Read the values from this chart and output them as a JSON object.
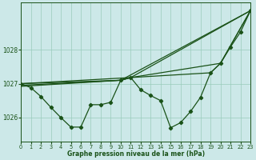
{
  "title": "Graphe pression niveau de la mer (hPa)",
  "bg_color": "#cce8e8",
  "grid_color": "#99ccbb",
  "line_color": "#1a5218",
  "xlim": [
    0,
    23
  ],
  "ylim": [
    1025.3,
    1029.4
  ],
  "yticks": [
    1026,
    1027,
    1028
  ],
  "xticks": [
    0,
    1,
    2,
    3,
    4,
    5,
    6,
    7,
    8,
    9,
    10,
    11,
    12,
    13,
    14,
    15,
    16,
    17,
    18,
    19,
    20,
    21,
    22,
    23
  ],
  "main_y": [
    1027.0,
    1026.88,
    1026.62,
    1026.3,
    1026.0,
    1025.72,
    1025.72,
    1026.38,
    1026.38,
    1026.45,
    1027.1,
    1027.18,
    1026.82,
    1026.65,
    1026.5,
    1025.7,
    1025.85,
    1026.18,
    1026.6,
    1027.32,
    1027.6,
    1028.08,
    1028.52,
    1029.15
  ],
  "line2_x": [
    0,
    10,
    23
  ],
  "line2_y": [
    1027.0,
    1027.1,
    1029.15
  ],
  "line3_x": [
    0,
    11,
    23
  ],
  "line3_y": [
    1027.0,
    1027.18,
    1029.15
  ],
  "line4_x": [
    0,
    10,
    11,
    20,
    23
  ],
  "line4_y": [
    1026.95,
    1027.1,
    1027.18,
    1027.6,
    1029.15
  ],
  "line5_x": [
    0,
    10,
    11,
    19,
    20,
    23
  ],
  "line5_y": [
    1026.92,
    1027.1,
    1027.18,
    1027.32,
    1027.6,
    1029.15
  ]
}
